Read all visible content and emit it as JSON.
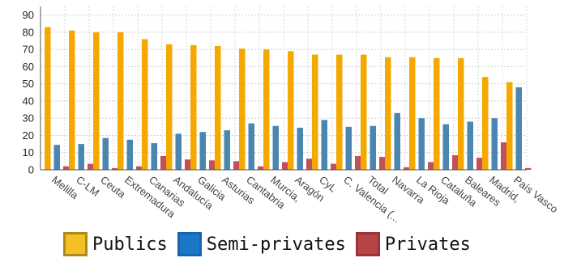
{
  "chart_data": {
    "type": "bar",
    "title": "",
    "xlabel": "",
    "ylabel": "",
    "ylim": [
      0,
      95
    ],
    "yticks": [
      0,
      10,
      20,
      30,
      40,
      50,
      60,
      70,
      80,
      90
    ],
    "grid": true,
    "legend_position": "bottom",
    "categories": [
      "Melilla",
      "C-LM",
      "Ceuta",
      "Extremadura",
      "Canarias",
      "Andalucía",
      "Galicia",
      "Asturias",
      "Cantabria",
      "Murcia,",
      "Aragón",
      "CyL",
      "C. Valencia (...",
      "Total",
      "Navarra",
      "La Rioja",
      "Cataluña",
      "Baleares",
      "Madrid,",
      "País Vasco"
    ],
    "series": [
      {
        "name": "Publics",
        "color": "#f5a800",
        "values": [
          83,
          81,
          80,
          80,
          76,
          73,
          72.5,
          72,
          70.5,
          70,
          69,
          67,
          67,
          67,
          65.5,
          65.5,
          65,
          65,
          54,
          51
        ]
      },
      {
        "name": "Semi-privates",
        "color": "#4a86b0",
        "values": [
          14.5,
          15,
          18.5,
          17.5,
          15.5,
          21,
          22,
          23,
          27,
          25.5,
          24.5,
          29,
          25,
          25.5,
          33,
          30,
          26.5,
          28,
          30,
          48
        ]
      },
      {
        "name": "Privates",
        "color": "#c0505a",
        "values": [
          2,
          3.5,
          1,
          2,
          8,
          6,
          5.5,
          5,
          2,
          4.5,
          6.5,
          3.5,
          8,
          7.5,
          1.5,
          4.5,
          8.5,
          7,
          16,
          1
        ]
      }
    ]
  },
  "legend": {
    "items": [
      {
        "label": "Publics",
        "fill": "#f4c025",
        "border": "#b08a18"
      },
      {
        "label": "Semi-privates",
        "fill": "#1a78c8",
        "border": "#1566ae"
      },
      {
        "label": "Privates",
        "fill": "#b84446",
        "border": "#9a3436"
      }
    ]
  }
}
